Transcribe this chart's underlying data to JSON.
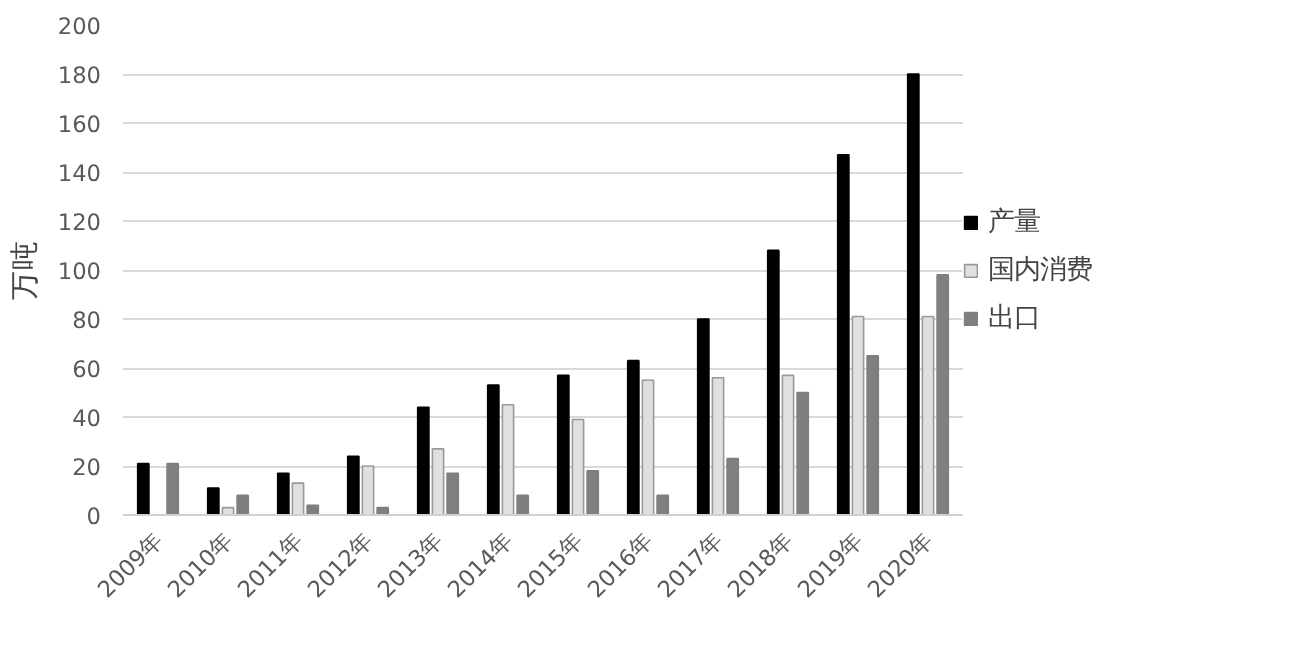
{
  "chart_data": {
    "type": "bar",
    "ylabel": "万吨",
    "categories": [
      "2009年",
      "2010年",
      "2011年",
      "2012年",
      "2013年",
      "2014年",
      "2015年",
      "2016年",
      "2017年",
      "2018年",
      "2019年",
      "2020年"
    ],
    "series": [
      {
        "name": "产量",
        "color": "#000000",
        "values": [
          21,
          11,
          17,
          24,
          44,
          53,
          57,
          63,
          80,
          108,
          147,
          180
        ]
      },
      {
        "name": "国内消费",
        "color": "#e0e0e0",
        "values": [
          null,
          3,
          13,
          20,
          27,
          45,
          39,
          55,
          56,
          57,
          81,
          81
        ]
      },
      {
        "name": "出口",
        "color": "#7f7f7f",
        "values": [
          21,
          8,
          4,
          3,
          17,
          8,
          18,
          8,
          23,
          50,
          65,
          98
        ]
      }
    ],
    "ylim": [
      0,
      200
    ],
    "yticks": [
      0,
      20,
      40,
      60,
      80,
      100,
      120,
      140,
      160,
      180,
      200
    ],
    "grid": "y",
    "legend": "right"
  }
}
